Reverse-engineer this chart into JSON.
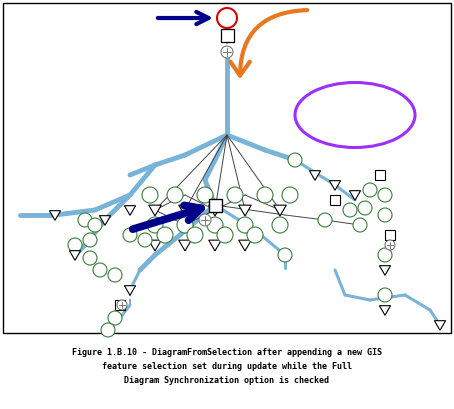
{
  "title_line1": "Figure 1.B.10 - DiagramFromSelection after appending a new GIS",
  "title_line2": "feature selection set during update while the Full",
  "title_line3": "Diagram Synchronization option is checked",
  "bg_color": "#ffffff",
  "border_color": "#000000",
  "node_circle_color": "#3a7d3a",
  "node_circle_fill": "#ffffff",
  "blue_line_color": "#7ab3d8",
  "thick_blue_lw": 3.5,
  "med_blue_lw": 2.2,
  "thin_blue_lw": 1.5,
  "black_line_color": "#444444",
  "red_circle_color": "#dd0000",
  "arrow_blue_color": "#00008B",
  "arrow_orange_color": "#E87820",
  "ellipse_purple_color": "#9B30FF",
  "dashed_blue_color": "#6699cc",
  "symbol_color": "#666666"
}
